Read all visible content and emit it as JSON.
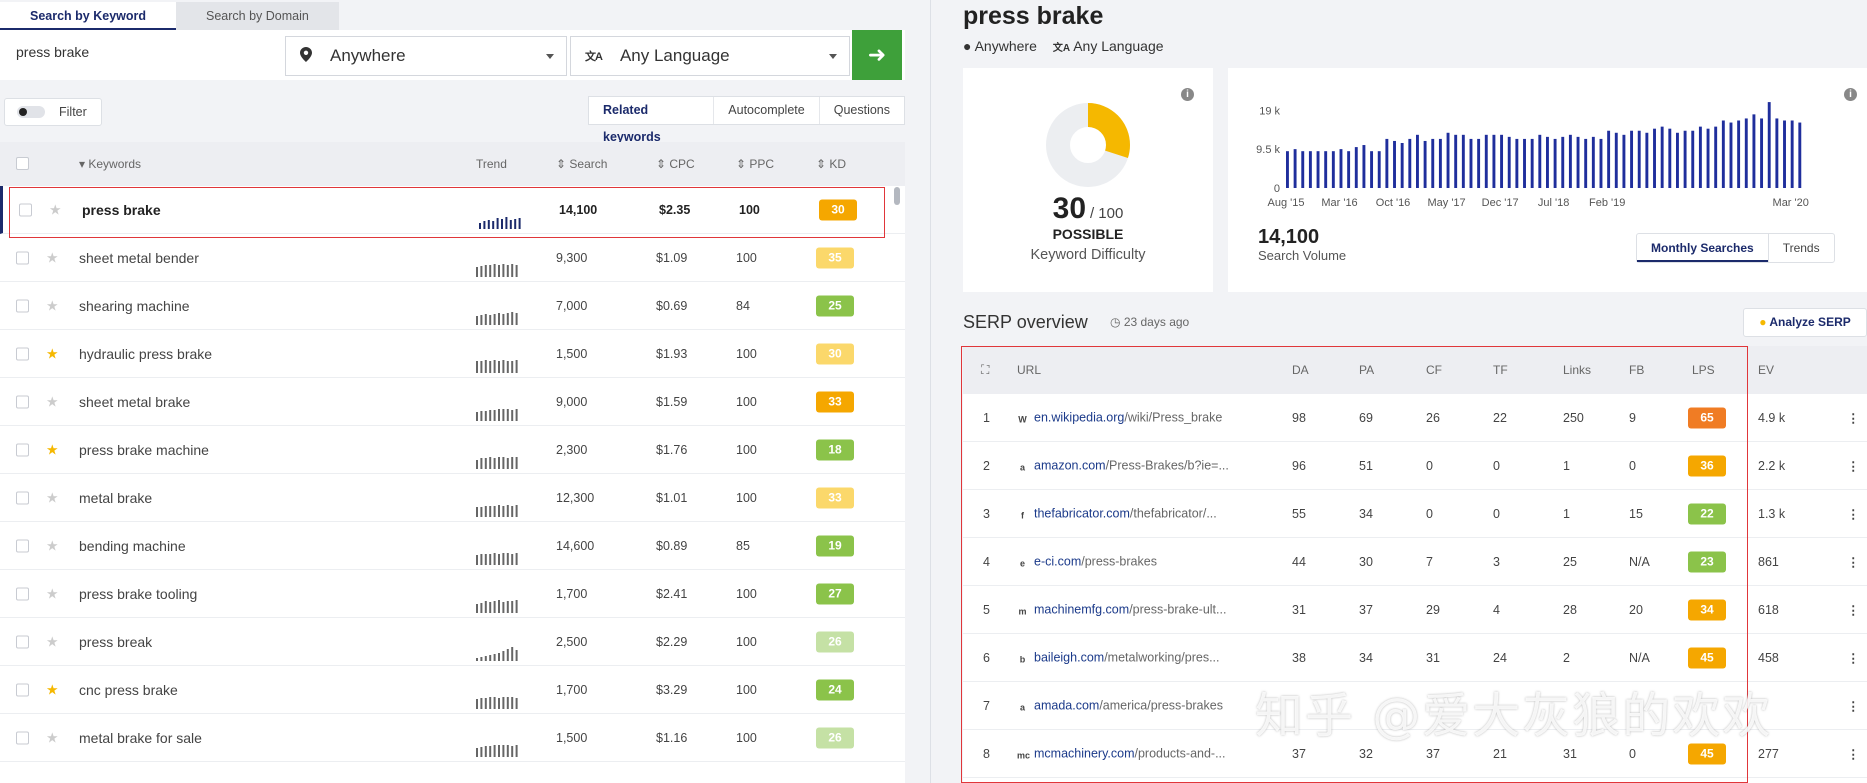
{
  "search": {
    "tabs": [
      "Search by Keyword",
      "Search by Domain"
    ],
    "keyword_value": "press brake",
    "location": "Anywhere",
    "language": "Any Language",
    "go_icon": "arrow-right-icon"
  },
  "filter_label": "Filter",
  "subtabs": [
    "Related keywords",
    "Autocomplete",
    "Questions"
  ],
  "table": {
    "headers": {
      "keywords": "Keywords",
      "trend": "Trend",
      "search": "Search",
      "cpc": "CPC",
      "ppc": "PPC",
      "kd": "KD"
    },
    "rows": [
      {
        "kw": "press brake",
        "search": "14,100",
        "cpc": "$2.35",
        "ppc": "100",
        "kd": "30",
        "starred": false,
        "bold": true,
        "kd_color": "#f5a700",
        "trend": [
          6,
          8,
          9,
          8,
          11,
          10,
          12,
          9,
          10,
          11
        ]
      },
      {
        "kw": "sheet metal bender",
        "search": "9,300",
        "cpc": "$1.09",
        "ppc": "100",
        "kd": "35",
        "starred": false,
        "kd_color": "#fbd86b",
        "trend": [
          10,
          11,
          12,
          12,
          13,
          12,
          13,
          12,
          13,
          12
        ]
      },
      {
        "kw": "shearing machine",
        "search": "7,000",
        "cpc": "$0.69",
        "ppc": "84",
        "kd": "25",
        "starred": false,
        "kd_color": "#8bc34a",
        "trend": [
          9,
          10,
          11,
          10,
          11,
          12,
          11,
          12,
          13,
          12
        ]
      },
      {
        "kw": "hydraulic press brake",
        "search": "1,500",
        "cpc": "$1.93",
        "ppc": "100",
        "kd": "30",
        "starred": true,
        "kd_color": "#fbd86b",
        "trend": [
          12,
          12,
          13,
          12,
          13,
          12,
          13,
          12,
          12,
          13
        ]
      },
      {
        "kw": "sheet metal brake",
        "search": "9,000",
        "cpc": "$1.59",
        "ppc": "100",
        "kd": "33",
        "starred": false,
        "kd_color": "#f5a700",
        "trend": [
          9,
          10,
          10,
          11,
          11,
          12,
          12,
          12,
          11,
          12
        ]
      },
      {
        "kw": "press brake machine",
        "search": "2,300",
        "cpc": "$1.76",
        "ppc": "100",
        "kd": "18",
        "starred": true,
        "kd_color": "#8bc34a",
        "trend": [
          9,
          11,
          11,
          12,
          11,
          12,
          12,
          11,
          12,
          12
        ]
      },
      {
        "kw": "metal brake",
        "search": "12,300",
        "cpc": "$1.01",
        "ppc": "100",
        "kd": "33",
        "starred": false,
        "kd_color": "#fbd86b",
        "trend": [
          10,
          10,
          11,
          11,
          11,
          12,
          11,
          12,
          11,
          12
        ]
      },
      {
        "kw": "bending machine",
        "search": "14,600",
        "cpc": "$0.89",
        "ppc": "85",
        "kd": "19",
        "starred": false,
        "kd_color": "#8bc34a",
        "trend": [
          10,
          11,
          11,
          11,
          12,
          11,
          12,
          12,
          11,
          12
        ]
      },
      {
        "kw": "press brake tooling",
        "search": "1,700",
        "cpc": "$2.41",
        "ppc": "100",
        "kd": "27",
        "starred": false,
        "kd_color": "#8bc34a",
        "trend": [
          9,
          10,
          12,
          11,
          12,
          13,
          11,
          12,
          12,
          13
        ]
      },
      {
        "kw": "press break",
        "search": "2,500",
        "cpc": "$2.29",
        "ppc": "100",
        "kd": "26",
        "starred": false,
        "kd_color": "#c5e1a5",
        "trend": [
          3,
          4,
          5,
          6,
          7,
          8,
          10,
          12,
          14,
          11
        ]
      },
      {
        "kw": "cnc press brake",
        "search": "1,700",
        "cpc": "$3.29",
        "ppc": "100",
        "kd": "24",
        "starred": true,
        "kd_color": "#8bc34a",
        "trend": [
          10,
          11,
          11,
          12,
          12,
          11,
          12,
          12,
          12,
          11
        ]
      },
      {
        "kw": "metal brake for sale",
        "search": "1,500",
        "cpc": "$1.16",
        "ppc": "100",
        "kd": "26",
        "starred": false,
        "kd_color": "#c5e1a5",
        "trend": [
          9,
          10,
          11,
          11,
          12,
          12,
          12,
          12,
          11,
          12
        ]
      }
    ]
  },
  "right": {
    "title": "press brake",
    "location": "Anywhere",
    "language": "Any Language",
    "kd_value": "30",
    "kd_max": "/ 100",
    "kd_label": "POSSIBLE",
    "kd_caption": "Keyword Difficulty",
    "kd_fraction": 0.3,
    "volume": "14,100",
    "volume_caption": "Search Volume",
    "toggle": [
      "Monthly Searches",
      "Trends"
    ],
    "serp_title": "SERP overview",
    "serp_ago": "23 days ago",
    "analyze_label": "Analyze SERP"
  },
  "chart_data": {
    "type": "bar",
    "yticks": [
      "19 k",
      "9.5 k",
      "0"
    ],
    "ylim": [
      0,
      22000
    ],
    "xticks": [
      "Aug '15",
      "Mar '16",
      "Oct '16",
      "May '17",
      "Dec '17",
      "Jul '18",
      "Feb '19",
      "Mar '20"
    ],
    "series": [
      {
        "values": [
          9000,
          9500,
          9000,
          9000,
          9000,
          9000,
          9000,
          9500,
          9000,
          10000,
          10500,
          9000,
          9000,
          12000,
          11500,
          11000,
          12000,
          13000,
          11500,
          12000,
          12000,
          13500,
          13000,
          13000,
          12000,
          12000,
          13000,
          13000,
          13000,
          12500,
          12000,
          12000,
          12000,
          13000,
          12500,
          12000,
          12500,
          13000,
          12500,
          12000,
          12500,
          12000,
          14000,
          13500,
          13000,
          14000,
          14000,
          13500,
          14500,
          15000,
          14500,
          13500,
          14000,
          14000,
          15000,
          14500,
          15000,
          16500,
          16000,
          16500,
          17000,
          18000,
          17000,
          21000,
          17000,
          16500,
          16500,
          16000
        ]
      }
    ]
  },
  "serp": {
    "headers": [
      "URL",
      "DA",
      "PA",
      "CF",
      "TF",
      "Links",
      "FB",
      "LPS",
      "EV"
    ],
    "rows": [
      {
        "n": "1",
        "fav": "W",
        "dom": "en.wikipedia.org",
        "path": "/wiki/Press_brake",
        "da": "98",
        "pa": "69",
        "cf": "26",
        "tf": "22",
        "links": "250",
        "fb": "9",
        "lps": "65",
        "lps_color": "#f07c24",
        "ev": "4.9 k"
      },
      {
        "n": "2",
        "fav": "a",
        "dom": "amazon.com",
        "path": "/Press-Brakes/b?ie=...",
        "da": "96",
        "pa": "51",
        "cf": "0",
        "tf": "0",
        "links": "1",
        "fb": "0",
        "lps": "36",
        "lps_color": "#f5a700",
        "ev": "2.2 k"
      },
      {
        "n": "3",
        "fav": "f",
        "dom": "thefabricator.com",
        "path": "/thefabricator/...",
        "da": "55",
        "pa": "34",
        "cf": "0",
        "tf": "0",
        "links": "1",
        "fb": "15",
        "lps": "22",
        "lps_color": "#8bc34a",
        "ev": "1.3 k"
      },
      {
        "n": "4",
        "fav": "e",
        "dom": "e-ci.com",
        "path": "/press-brakes",
        "da": "44",
        "pa": "30",
        "cf": "7",
        "tf": "3",
        "links": "25",
        "fb": "N/A",
        "lps": "23",
        "lps_color": "#8bc34a",
        "ev": "861"
      },
      {
        "n": "5",
        "fav": "m",
        "dom": "machinemfg.com",
        "path": "/press-brake-ult...",
        "da": "31",
        "pa": "37",
        "cf": "29",
        "tf": "4",
        "links": "28",
        "fb": "20",
        "lps": "34",
        "lps_color": "#f5a700",
        "ev": "618"
      },
      {
        "n": "6",
        "fav": "b",
        "dom": "baileigh.com",
        "path": "/metalworking/pres...",
        "da": "38",
        "pa": "34",
        "cf": "31",
        "tf": "24",
        "links": "2",
        "fb": "N/A",
        "lps": "45",
        "lps_color": "#f5a700",
        "ev": "458"
      },
      {
        "n": "7",
        "fav": "a",
        "dom": "amada.com",
        "path": "/america/press-brakes",
        "da": "",
        "pa": "",
        "cf": "",
        "tf": "",
        "links": "",
        "fb": "",
        "lps": "",
        "lps_color": "#f5a700",
        "ev": ""
      },
      {
        "n": "8",
        "fav": "mc",
        "dom": "mcmachinery.com",
        "path": "/products-and-...",
        "da": "37",
        "pa": "32",
        "cf": "37",
        "tf": "21",
        "links": "31",
        "fb": "0",
        "lps": "45",
        "lps_color": "#f5a700",
        "ev": "277"
      }
    ]
  },
  "watermark": "知乎 @爱大灰狼的欢欢"
}
